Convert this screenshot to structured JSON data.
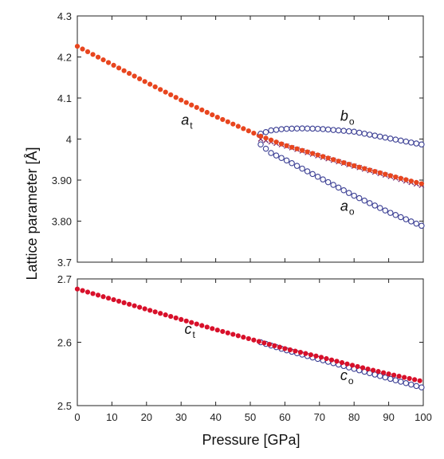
{
  "chart_data": [
    {
      "type": "scatter",
      "xlabel": "Pressure [GPa]",
      "ylabel": "Lattice parameter [Å]",
      "xlim": [
        0,
        100
      ],
      "ylim": [
        3.7,
        4.3
      ],
      "xticks": [
        0,
        10,
        20,
        30,
        40,
        50,
        60,
        70,
        80,
        90,
        100
      ],
      "yticks": [
        3.7,
        3.8,
        3.9,
        4.0,
        4.1,
        4.2,
        4.3
      ],
      "ytick_labels": [
        "3.7",
        "3.80",
        "3.90",
        "4",
        "4.1",
        "4.2",
        "4.3"
      ],
      "grid": false,
      "labels": [
        {
          "main": "a",
          "sub": "t",
          "x": 30,
          "y": 4.035
        },
        {
          "main": "b",
          "sub": "o",
          "x": 76,
          "y": 4.045
        },
        {
          "main": "a",
          "sub": "o",
          "x": 76,
          "y": 3.825
        }
      ],
      "series": [
        {
          "id": "a_t",
          "marker": "filled-circle",
          "color": "#e8451e",
          "x_range": [
            0,
            53
          ],
          "step": 1.5,
          "y_at": [
            [
              0,
              4.226
            ],
            [
              10,
              4.182
            ],
            [
              20,
              4.138
            ],
            [
              30,
              4.095
            ],
            [
              40,
              4.055
            ],
            [
              53,
              4.007
            ]
          ]
        },
        {
          "id": "b_o",
          "marker": "open-circle",
          "color": "#3b3f94",
          "x_range": [
            53,
            100
          ],
          "step": 1.5,
          "y_at": [
            [
              53,
              4.013
            ],
            [
              56,
              4.021
            ],
            [
              60,
              4.025
            ],
            [
              65,
              4.026
            ],
            [
              70,
              4.025
            ],
            [
              80,
              4.018
            ],
            [
              90,
              4.002
            ],
            [
              100,
              3.986
            ]
          ]
        },
        {
          "id": "a_o",
          "marker": "open-circle",
          "color": "#3b3f94",
          "x_range": [
            53,
            100
          ],
          "step": 1.5,
          "y_at": [
            [
              53,
              3.987
            ],
            [
              56,
              3.966
            ],
            [
              60,
              3.95
            ],
            [
              70,
              3.906
            ],
            [
              80,
              3.862
            ],
            [
              90,
              3.822
            ],
            [
              100,
              3.787
            ]
          ]
        },
        {
          "id": "avg_o",
          "marker": "cross",
          "color": "#7b2f6e",
          "x_range": [
            53,
            100
          ],
          "step": 1.5,
          "y_at": [
            [
              53,
              4.0
            ],
            [
              60,
              3.984
            ],
            [
              70,
              3.958
            ],
            [
              80,
              3.934
            ],
            [
              90,
              3.91
            ],
            [
              100,
              3.886
            ]
          ]
        },
        {
          "id": "a_t_ext",
          "marker": "filled-circle",
          "color": "#e8451e",
          "x_range": [
            53,
            100
          ],
          "step": 1.5,
          "y_at": [
            [
              53,
              4.007
            ],
            [
              60,
              3.985
            ],
            [
              70,
              3.96
            ],
            [
              80,
              3.935
            ],
            [
              90,
              3.912
            ],
            [
              100,
              3.89
            ]
          ]
        }
      ]
    },
    {
      "type": "scatter",
      "xlabel": "Pressure [GPa]",
      "ylabel": "Lattice parameter [Å]",
      "xlim": [
        0,
        100
      ],
      "ylim": [
        2.5,
        2.7
      ],
      "xticks": [
        0,
        10,
        20,
        30,
        40,
        50,
        60,
        70,
        80,
        90,
        100
      ],
      "yticks": [
        2.5,
        2.6,
        2.7
      ],
      "ytick_labels": [
        "2.5",
        "2.6",
        "2.7"
      ],
      "grid": false,
      "labels": [
        {
          "main": "c",
          "sub": "t",
          "x": 31,
          "y": 2.613
        },
        {
          "main": "c",
          "sub": "o",
          "x": 76,
          "y": 2.54
        }
      ],
      "series": [
        {
          "id": "c_o",
          "marker": "open-circle",
          "color": "#3b3f94",
          "x_range": [
            53,
            100
          ],
          "step": 1.5,
          "y_at": [
            [
              53,
              2.6
            ],
            [
              60,
              2.588
            ],
            [
              70,
              2.573
            ],
            [
              80,
              2.558
            ],
            [
              90,
              2.543
            ],
            [
              100,
              2.528
            ]
          ]
        },
        {
          "id": "c_t",
          "marker": "filled-circle",
          "color": "#d8102a",
          "x_range": [
            0,
            100
          ],
          "step": 1.5,
          "y_at": [
            [
              0,
              2.684
            ],
            [
              10,
              2.668
            ],
            [
              20,
              2.652
            ],
            [
              30,
              2.636
            ],
            [
              40,
              2.62
            ],
            [
              50,
              2.605
            ],
            [
              60,
              2.59
            ],
            [
              70,
              2.577
            ],
            [
              80,
              2.563
            ],
            [
              90,
              2.55
            ],
            [
              100,
              2.538
            ]
          ]
        }
      ]
    }
  ]
}
